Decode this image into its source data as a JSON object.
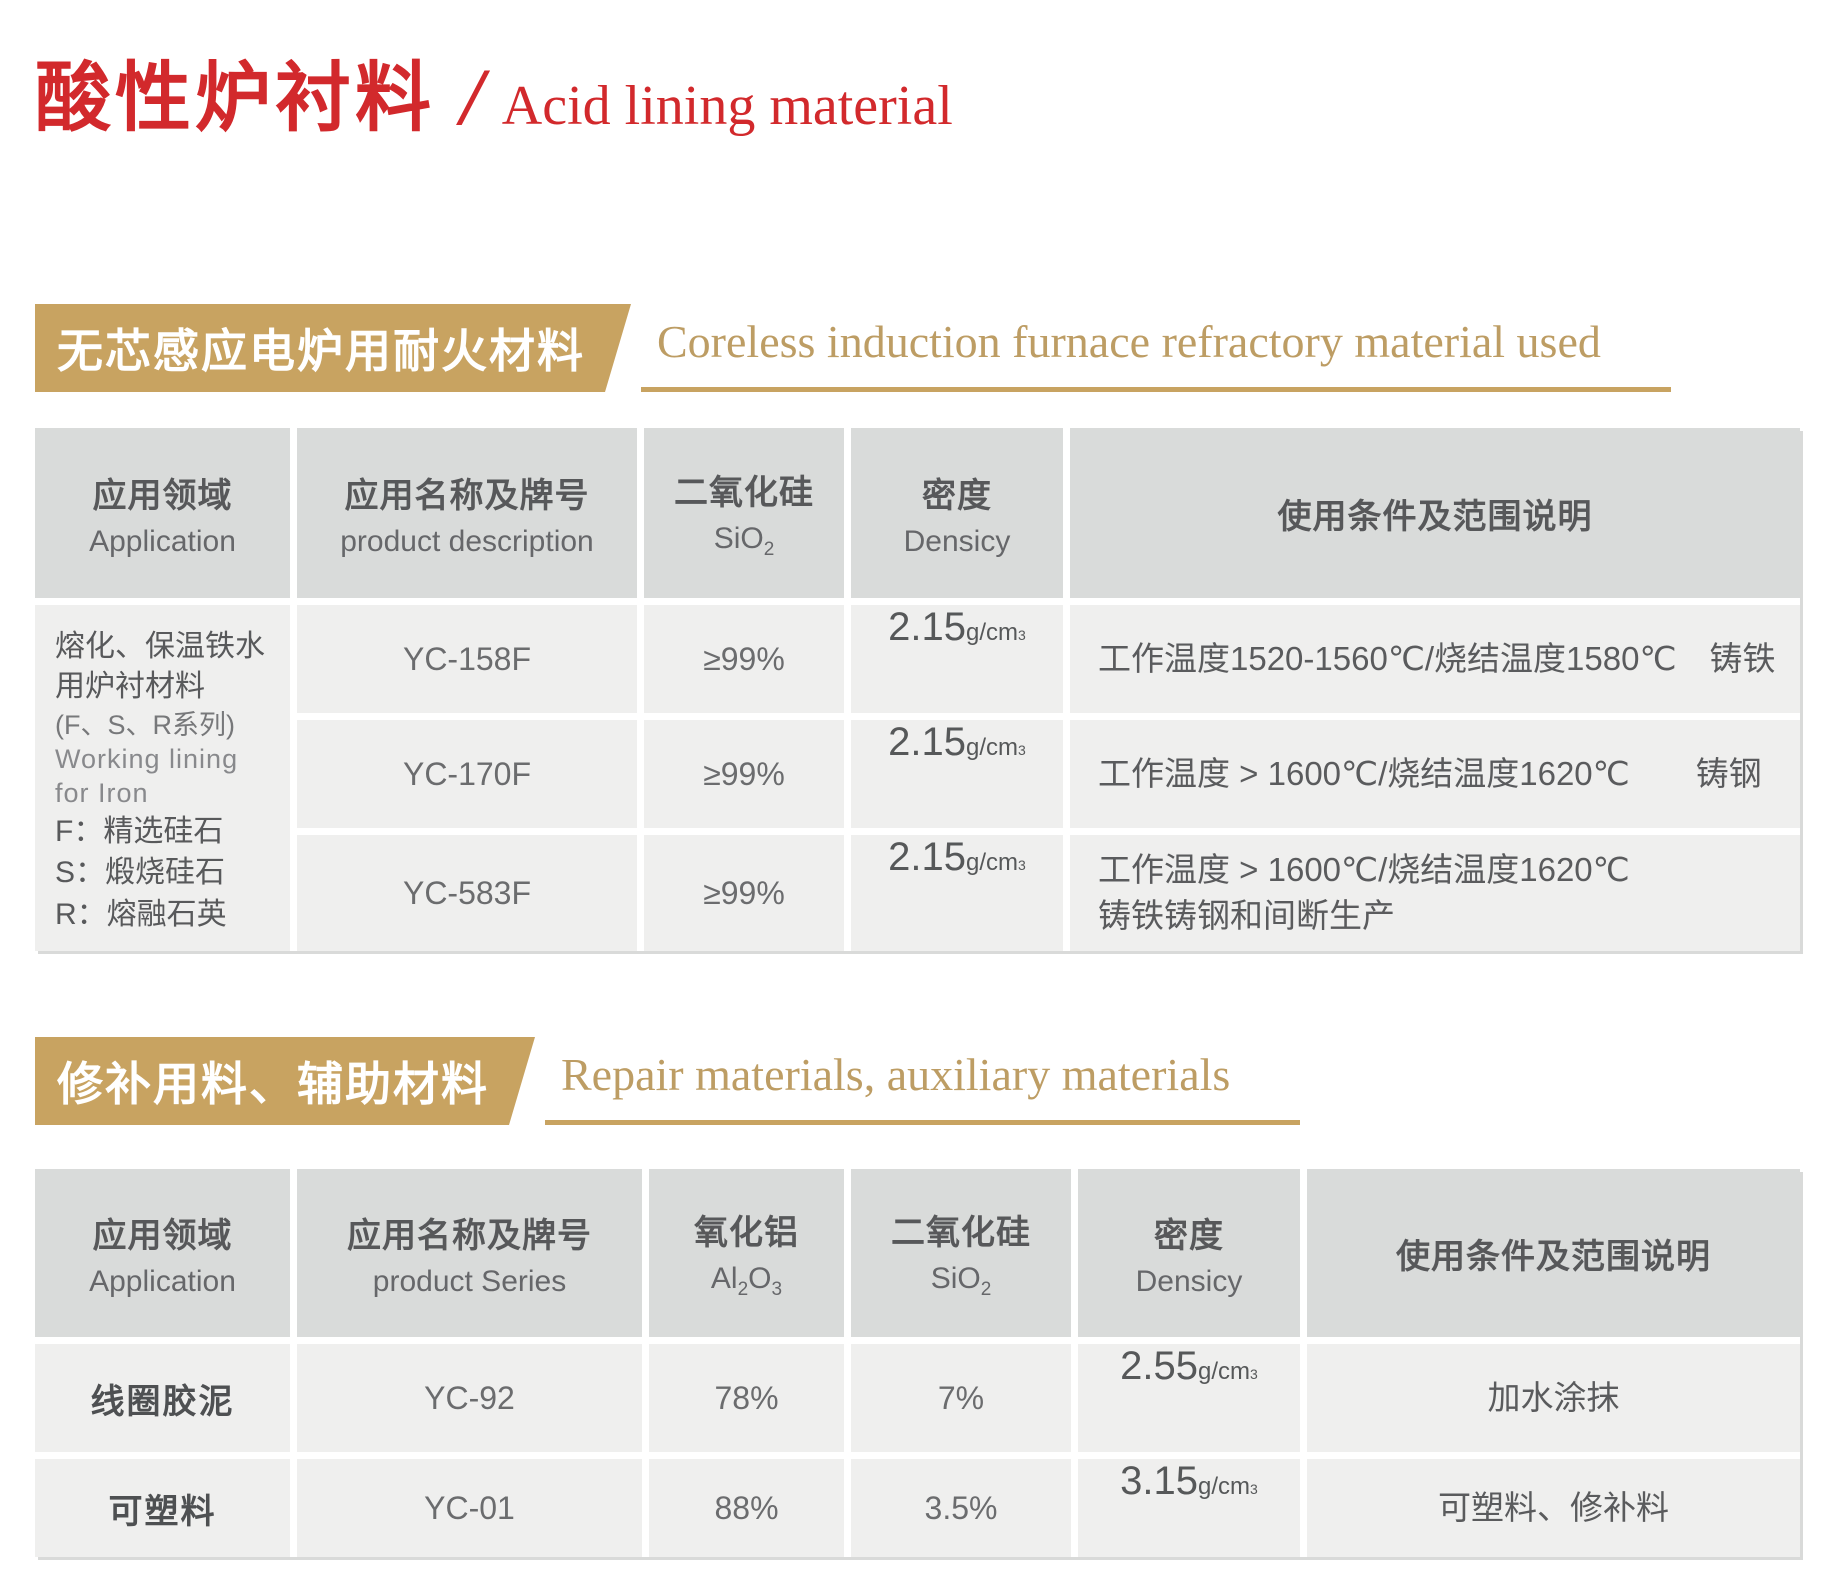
{
  "page": {
    "title_cn": "酸性炉衬料",
    "title_slash": "/",
    "title_en": "Acid lining material"
  },
  "section1": {
    "banner_cn": "无芯感应电炉用耐火材料",
    "banner_en": "Coreless induction furnace refractory material used"
  },
  "table1": {
    "headers": {
      "c1_cn": "应用领域",
      "c1_en": "Application",
      "c2_cn": "应用名称及牌号",
      "c2_en": "product description",
      "c3_cn": "二氧化硅",
      "c3_f_base": "SiO",
      "c3_f_sub": "2",
      "c4_cn": "密度",
      "c4_en": "Densicy",
      "c5_cn": "使用条件及范围说明"
    },
    "application": {
      "line1": "熔化、保温铁水用炉衬材料",
      "line2": "(F、S、R系列)",
      "line3": "Working lining",
      "line4": "for Iron",
      "line5": "F：精选硅石",
      "line6": "S：煅烧硅石",
      "line7": "R：熔融石英"
    },
    "rows": [
      {
        "product": "YC-158F",
        "sio2": "≥99%",
        "density": "2.15",
        "cond1": "工作温度1520-1560℃/烧结温度1580℃　铸铁",
        "cond2": ""
      },
      {
        "product": "YC-170F",
        "sio2": "≥99%",
        "density": "2.15",
        "cond1": "工作温度 > 1600℃/烧结温度1620℃　　铸钢",
        "cond2": ""
      },
      {
        "product": "YC-583F",
        "sio2": "≥99%",
        "density": "2.15",
        "cond1": "工作温度 > 1600℃/烧结温度1620℃",
        "cond2": "铸铁铸钢和间断生产"
      }
    ]
  },
  "section2": {
    "banner_cn": "修补用料、辅助材料",
    "banner_en": "Repair materials, auxiliary materials"
  },
  "table2": {
    "headers": {
      "c1_cn": "应用领域",
      "c1_en": "Application",
      "c2_cn": "应用名称及牌号",
      "c2_en": "product Series",
      "c3_cn": "氧化铝",
      "c3_f": [
        "Al",
        "2",
        "O",
        "3"
      ],
      "c4_cn": "二氧化硅",
      "c4_f_base": "SiO",
      "c4_f_sub": "2",
      "c5_cn": "密度",
      "c5_en": "Densicy",
      "c6_cn": "使用条件及范围说明"
    },
    "rows": [
      {
        "application": "线圈胶泥",
        "product": "YC-92",
        "al2o3": "78%",
        "sio2": "7%",
        "density": "2.55",
        "cond": "加水涂抹"
      },
      {
        "application": "可塑料",
        "product": "YC-01",
        "al2o3": "88%",
        "sio2": "3.5%",
        "density": "3.15",
        "cond": "可塑料、修补料"
      }
    ]
  },
  "units": {
    "density_unit": "g/cm",
    "density_sup": "3"
  }
}
